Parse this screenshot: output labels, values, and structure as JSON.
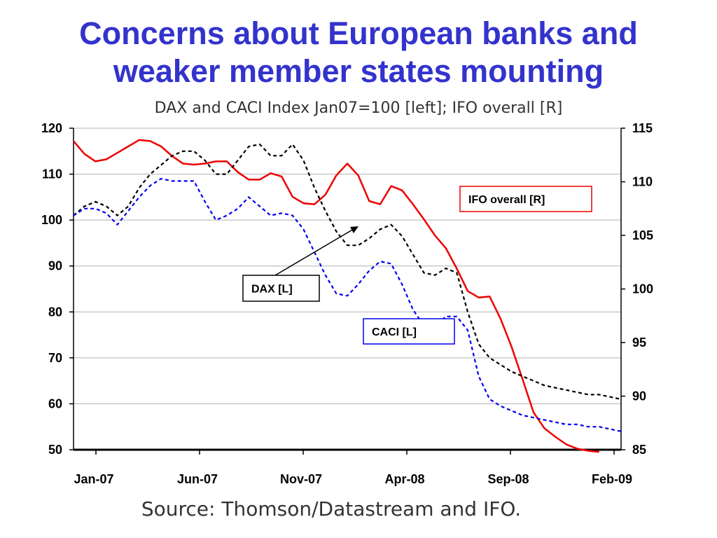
{
  "title_line1": "Concerns about European banks and",
  "title_line2": "weaker member states mounting",
  "subtitle": "DAX and CACI Index Jan07=100 [left]; IFO overall [R]",
  "source": "Source: Thomson/Datastream and IFO.",
  "colors": {
    "title": "#3333CC",
    "ifo": "#EE0000",
    "dax": "#000000",
    "caci": "#0000EE"
  },
  "chart_data": {
    "type": "line",
    "x_ticks": [
      "Jan-07",
      "Jun-07",
      "Nov-07",
      "Apr-08",
      "Sep-08",
      "Feb-09"
    ],
    "y_left_ticks": [
      50,
      60,
      70,
      80,
      90,
      100,
      110,
      120
    ],
    "y_left_range": [
      50,
      120
    ],
    "y_right_ticks": [
      85,
      90,
      95,
      100,
      105,
      110,
      115
    ],
    "y_right_range": [
      85,
      115
    ],
    "x_range": [
      0,
      25
    ],
    "grid": "horizontal",
    "annotations": [
      {
        "text": "IFO overall [R]",
        "series": "IFO"
      },
      {
        "text": "DAX [L]",
        "series": "DAX"
      },
      {
        "text": "CACI [L]",
        "series": "CACI"
      }
    ],
    "series": [
      {
        "name": "IFO overall [R]",
        "axis": "right",
        "style": "solid",
        "color": "#EE0000",
        "x": [
          0,
          0.5,
          1,
          1.5,
          2,
          2.5,
          3,
          3.5,
          4,
          4.5,
          5,
          5.5,
          6,
          6.5,
          7,
          7.5,
          8,
          8.5,
          9,
          9.5,
          10,
          10.5,
          11,
          11.5,
          12,
          12.5,
          13,
          13.5,
          14,
          14.5,
          15,
          15.5,
          16,
          16.5,
          17,
          17.5,
          18,
          18.5,
          19,
          19.5,
          20,
          20.5,
          21,
          21.5,
          22,
          22.5,
          23,
          23.5,
          24
        ],
        "y": [
          113.8,
          112.6,
          111.9,
          112.1,
          112.7,
          113.3,
          113.9,
          113.8,
          113.3,
          112.4,
          111.7,
          111.6,
          111.7,
          111.9,
          111.9,
          110.9,
          110.2,
          110.2,
          110.8,
          110.5,
          108.6,
          108.0,
          107.9,
          108.8,
          110.6,
          111.7,
          110.6,
          108.2,
          107.9,
          109.6,
          109.2,
          107.9,
          106.5,
          105.0,
          103.8,
          101.9,
          99.8,
          99.2,
          99.3,
          97.2,
          94.6,
          91.6,
          88.5,
          87.0,
          86.2,
          85.5,
          85.1,
          84.9,
          84.8
        ]
      },
      {
        "name": "DAX [L]",
        "axis": "left",
        "style": "dashed",
        "color": "#000000",
        "x": [
          0,
          0.5,
          1,
          1.5,
          2,
          2.5,
          3,
          3.5,
          4,
          4.5,
          5,
          5.5,
          6,
          6.5,
          7,
          7.5,
          8,
          8.5,
          9,
          9.5,
          10,
          10.5,
          11,
          11.5,
          12,
          12.5,
          13,
          13.5,
          14,
          14.5,
          15,
          15.5,
          16,
          16.5,
          17,
          17.5,
          18,
          18.5,
          19,
          19.5,
          20,
          20.5,
          21,
          21.5,
          22,
          22.5,
          23,
          23.5,
          24,
          24.5,
          25
        ],
        "y": [
          101,
          103,
          104,
          103,
          101,
          103,
          107,
          110,
          112,
          114,
          115,
          115,
          113,
          110,
          110,
          113,
          116,
          116.5,
          114,
          114,
          116.5,
          113,
          107,
          102,
          97.5,
          94.5,
          94.5,
          96,
          98,
          99,
          96.5,
          92.5,
          88.5,
          88,
          89.5,
          88.5,
          80,
          73,
          70,
          68.5,
          67,
          66,
          65,
          64,
          63.5,
          63,
          62.5,
          62,
          62,
          61.5,
          61
        ]
      },
      {
        "name": "CACI [L]",
        "axis": "left",
        "style": "dashed",
        "color": "#0000EE",
        "x": [
          0,
          0.5,
          1,
          1.5,
          2,
          2.5,
          3,
          3.5,
          4,
          4.5,
          5,
          5.5,
          6,
          6.5,
          7,
          7.5,
          8,
          8.5,
          9,
          9.5,
          10,
          10.5,
          11,
          11.5,
          12,
          12.5,
          13,
          13.5,
          14,
          14.5,
          15,
          15.5,
          16,
          16.5,
          17,
          17.5,
          18,
          18.5,
          19,
          19.5,
          20,
          20.5,
          21,
          21.5,
          22,
          22.5,
          23,
          23.5,
          24,
          24.5,
          25
        ],
        "y": [
          101,
          102.5,
          102.5,
          101.5,
          99,
          102,
          105,
          107.5,
          109,
          108.5,
          108.5,
          108.5,
          104,
          100,
          101,
          102.5,
          105,
          103,
          101,
          101.5,
          101,
          98,
          93,
          88,
          84,
          83.5,
          86,
          89,
          91,
          90.5,
          86,
          80.5,
          77,
          77,
          79,
          79,
          76,
          66,
          61,
          59.5,
          58.5,
          57.5,
          57,
          56.5,
          56,
          55.5,
          55.5,
          55,
          55,
          54.5,
          54
        ]
      }
    ]
  }
}
